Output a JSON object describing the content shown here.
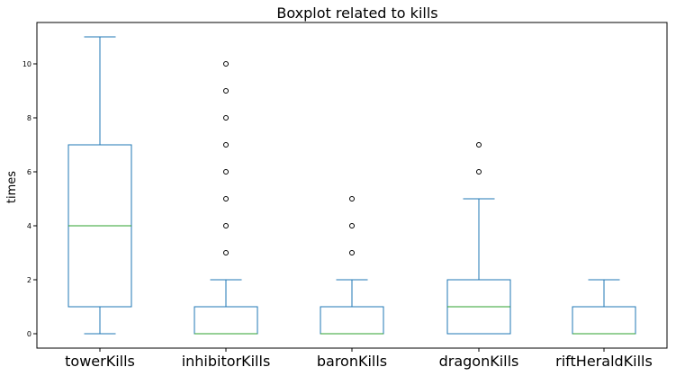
{
  "chart_data": {
    "type": "boxplot",
    "title": "Boxplot related to kills",
    "xlabel": "",
    "ylabel": "times",
    "ylim": [
      -0.55,
      11.55
    ],
    "yticks": [
      0,
      2,
      4,
      6,
      8,
      10
    ],
    "grid": false,
    "legend": "none",
    "categories": [
      "towerKills",
      "inhibitorKills",
      "baronKills",
      "dragonKills",
      "riftHeraldKills"
    ],
    "boxes": [
      {
        "category": "towerKills",
        "whisker_low": 0,
        "q1": 1,
        "median": 4,
        "q3": 7,
        "whisker_high": 11,
        "outliers": []
      },
      {
        "category": "inhibitorKills",
        "whisker_low": 0,
        "q1": 0,
        "median": 0,
        "q3": 1,
        "whisker_high": 2,
        "outliers": [
          3,
          4,
          5,
          6,
          7,
          8,
          9,
          10
        ]
      },
      {
        "category": "baronKills",
        "whisker_low": 0,
        "q1": 0,
        "median": 0,
        "q3": 1,
        "whisker_high": 2,
        "outliers": [
          3,
          4,
          5
        ]
      },
      {
        "category": "dragonKills",
        "whisker_low": 0,
        "q1": 0,
        "median": 1,
        "q3": 2,
        "whisker_high": 5,
        "outliers": [
          6,
          7
        ]
      },
      {
        "category": "riftHeraldKills",
        "whisker_low": 0,
        "q1": 0,
        "median": 0,
        "q3": 1,
        "whisker_high": 2,
        "outliers": []
      }
    ],
    "colors": {
      "box": "#1f77b4",
      "median": "#2ca02c",
      "axis": "#000000",
      "text": "#000000",
      "background": "#ffffff"
    }
  }
}
